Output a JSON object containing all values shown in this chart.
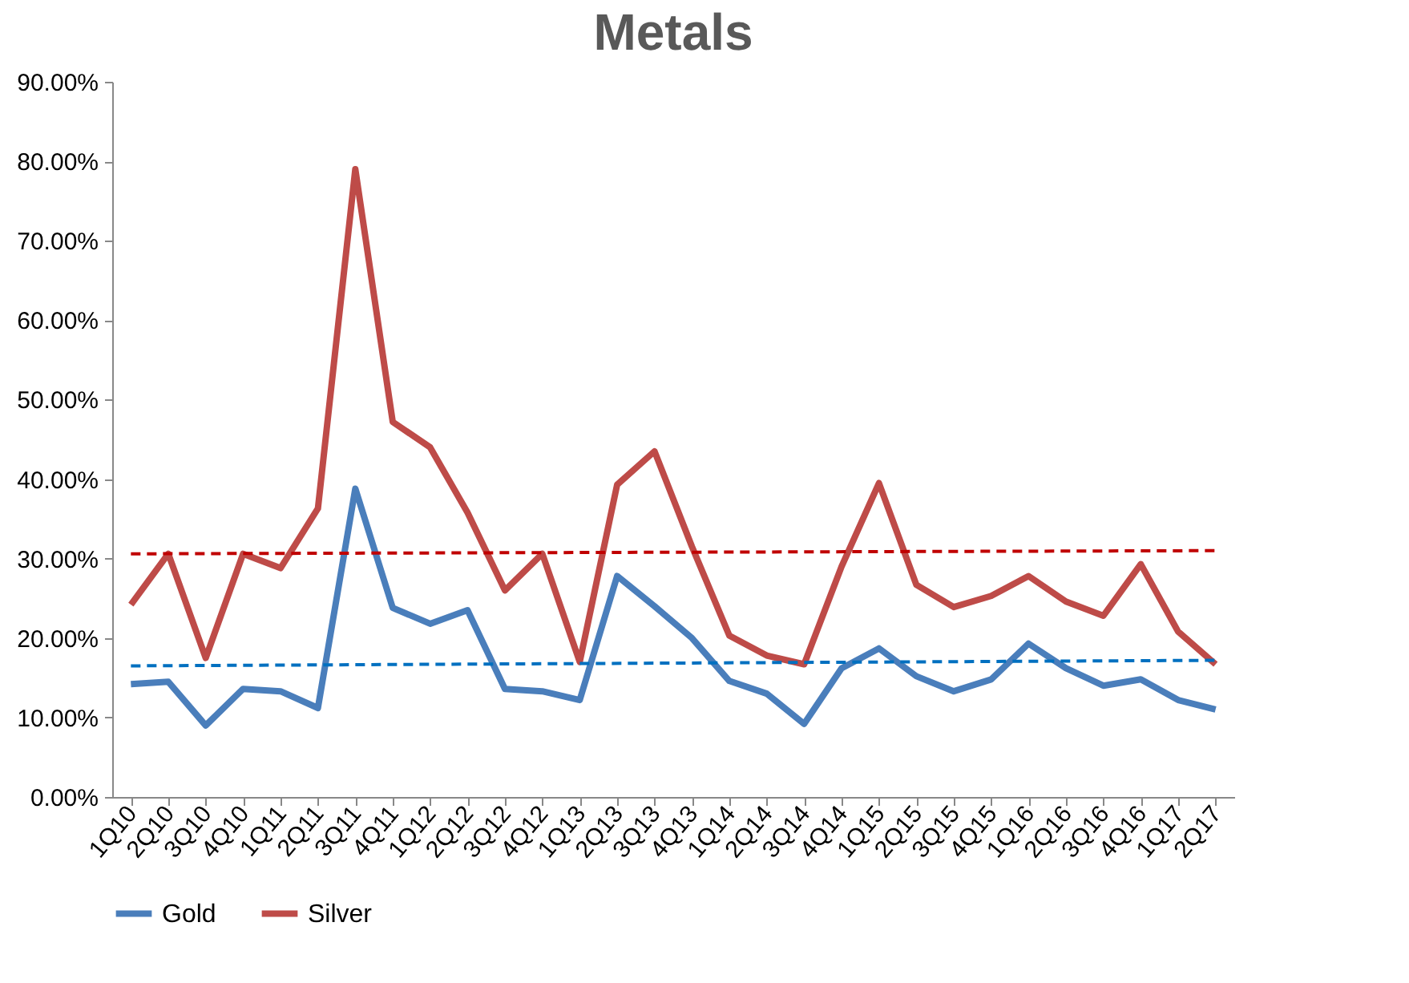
{
  "chart_data": {
    "type": "line",
    "title": "Metals",
    "categories": [
      "1Q10",
      "2Q10",
      "3Q10",
      "4Q10",
      "1Q11",
      "2Q11",
      "3Q11",
      "4Q11",
      "1Q12",
      "2Q12",
      "3Q12",
      "4Q12",
      "1Q13",
      "2Q13",
      "3Q13",
      "4Q13",
      "1Q14",
      "2Q14",
      "3Q14",
      "4Q14",
      "1Q15",
      "2Q15",
      "3Q15",
      "4Q15",
      "1Q16",
      "2Q16",
      "3Q16",
      "4Q16",
      "1Q17",
      "2Q17"
    ],
    "series": [
      {
        "name": "Gold",
        "color": "#4a7ebb",
        "values": [
          14.2,
          14.5,
          9.0,
          13.6,
          13.3,
          11.2,
          38.8,
          23.8,
          21.8,
          23.5,
          13.6,
          13.3,
          12.2,
          27.8,
          24.0,
          20.0,
          14.6,
          13.0,
          9.2,
          16.2,
          18.7,
          15.2,
          13.3,
          14.8,
          19.3,
          16.2,
          14.0,
          14.8,
          12.2,
          11.0
        ]
      },
      {
        "name": "Silver",
        "color": "#be4b48",
        "values": [
          24.2,
          30.6,
          17.5,
          30.6,
          28.8,
          36.3,
          79.0,
          47.2,
          44.0,
          35.8,
          26.0,
          30.6,
          17.0,
          39.3,
          43.5,
          31.5,
          20.3,
          17.8,
          16.7,
          29.0,
          39.5,
          26.7,
          23.9,
          25.3,
          27.8,
          24.6,
          22.8,
          29.3,
          20.8,
          16.7
        ]
      },
      {
        "type": "line",
        "line_style": "dashed",
        "color": "#0070c0",
        "x": [
          "1Q10",
          "2Q17"
        ],
        "values": [
          16.5,
          17.2
        ]
      },
      {
        "type": "line",
        "line_style": "dashed",
        "color": "#c00000",
        "x": [
          "1Q10",
          "2Q17"
        ],
        "values": [
          30.6,
          31.0
        ]
      }
    ],
    "ylim": [
      0,
      90
    ],
    "yticks": [
      {
        "value": 0,
        "label": "0.00%"
      },
      {
        "value": 10,
        "label": "10.00%"
      },
      {
        "value": 20,
        "label": "20.00%"
      },
      {
        "value": 30,
        "label": "30.00%"
      },
      {
        "value": 40,
        "label": "40.00%"
      },
      {
        "value": 50,
        "label": "50.00%"
      },
      {
        "value": 60,
        "label": "60.00%"
      },
      {
        "value": 70,
        "label": "70.00%"
      },
      {
        "value": 80,
        "label": "80.00%"
      },
      {
        "value": 90,
        "label": "90.00%"
      }
    ],
    "line_style": "solid",
    "legend": "bottom",
    "grid": false
  }
}
